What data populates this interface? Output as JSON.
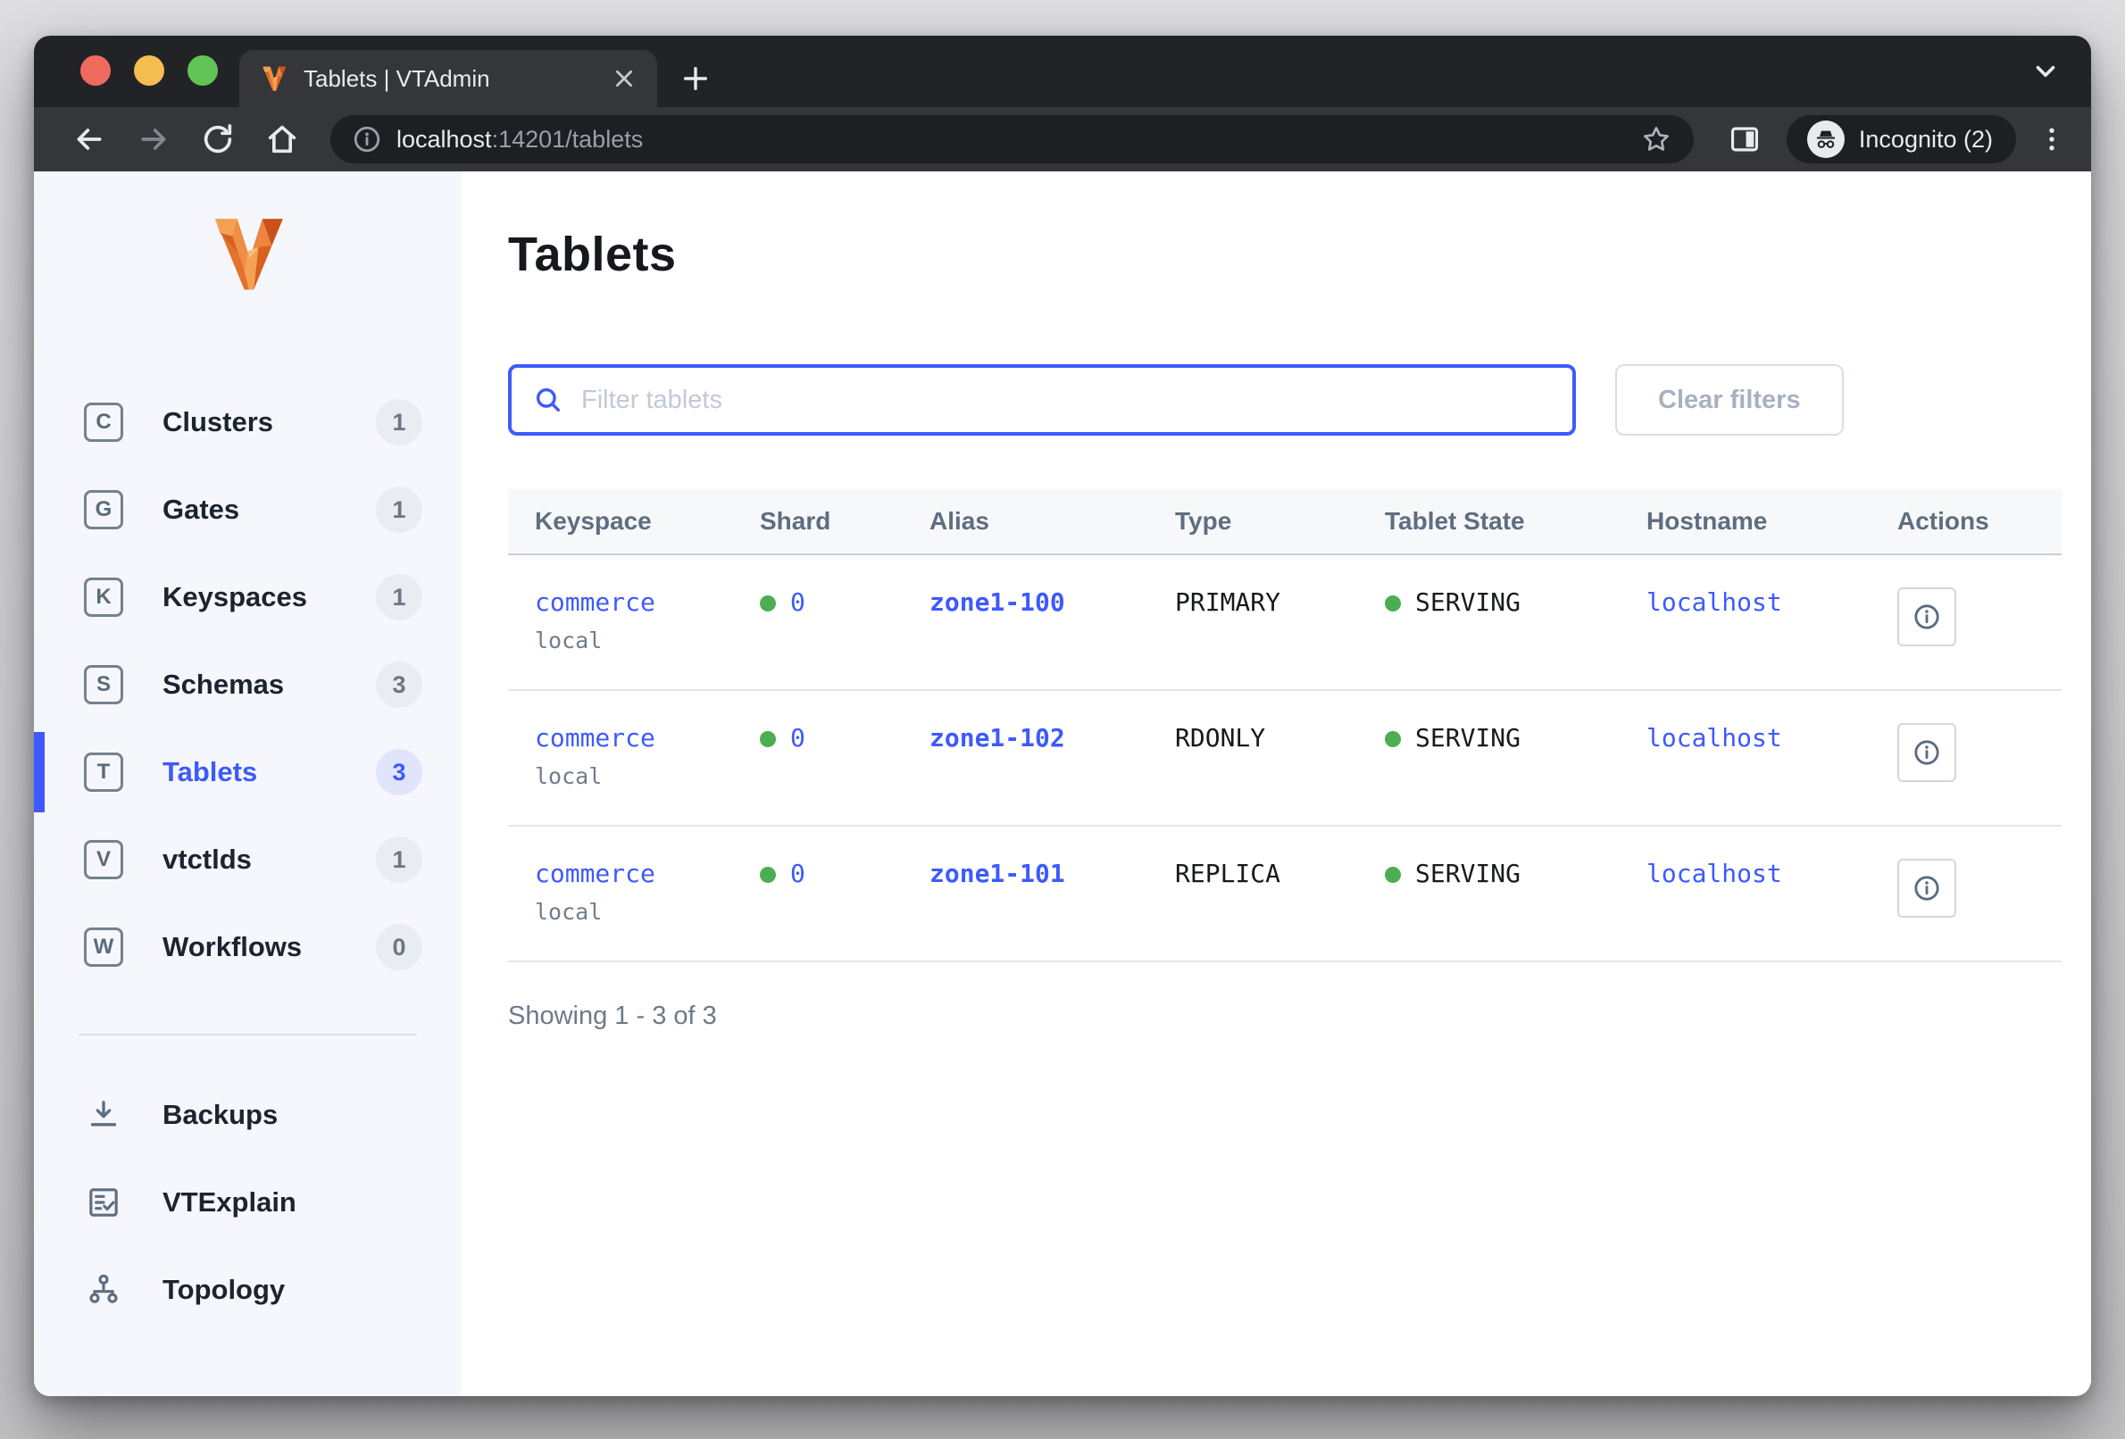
{
  "browser": {
    "tab_title": "Tablets | VTAdmin",
    "url_host": "localhost",
    "url_rest": ":14201/tablets",
    "incognito_label": "Incognito (2)"
  },
  "sidebar": {
    "nav": [
      {
        "letter": "C",
        "label": "Clusters",
        "count": "1",
        "active": false
      },
      {
        "letter": "G",
        "label": "Gates",
        "count": "1",
        "active": false
      },
      {
        "letter": "K",
        "label": "Keyspaces",
        "count": "1",
        "active": false
      },
      {
        "letter": "S",
        "label": "Schemas",
        "count": "3",
        "active": false
      },
      {
        "letter": "T",
        "label": "Tablets",
        "count": "3",
        "active": true
      },
      {
        "letter": "V",
        "label": "vtctlds",
        "count": "1",
        "active": false
      },
      {
        "letter": "W",
        "label": "Workflows",
        "count": "0",
        "active": false
      }
    ],
    "tools": [
      {
        "icon": "backups-download-icon",
        "label": "Backups"
      },
      {
        "icon": "vtexplain-doc-icon",
        "label": "VTExplain"
      },
      {
        "icon": "topology-graph-icon",
        "label": "Topology"
      }
    ]
  },
  "main": {
    "title": "Tablets",
    "filter_placeholder": "Filter tablets",
    "clear_filters_label": "Clear filters",
    "table": {
      "columns": [
        "Keyspace",
        "Shard",
        "Alias",
        "Type",
        "Tablet State",
        "Hostname",
        "Actions"
      ],
      "rows": [
        {
          "keyspace": "commerce",
          "cluster": "local",
          "shard": "0",
          "alias": "zone1-100",
          "type": "PRIMARY",
          "state": "SERVING",
          "hostname": "localhost"
        },
        {
          "keyspace": "commerce",
          "cluster": "local",
          "shard": "0",
          "alias": "zone1-102",
          "type": "RDONLY",
          "state": "SERVING",
          "hostname": "localhost"
        },
        {
          "keyspace": "commerce",
          "cluster": "local",
          "shard": "0",
          "alias": "zone1-101",
          "type": "REPLICA",
          "state": "SERVING",
          "hostname": "localhost"
        }
      ],
      "footer": "Showing 1 - 3 of 3"
    }
  },
  "colors": {
    "accent_blue": "#3d5afe",
    "serving_green": "#4cae52",
    "vitess_orange": "#e1732f"
  }
}
